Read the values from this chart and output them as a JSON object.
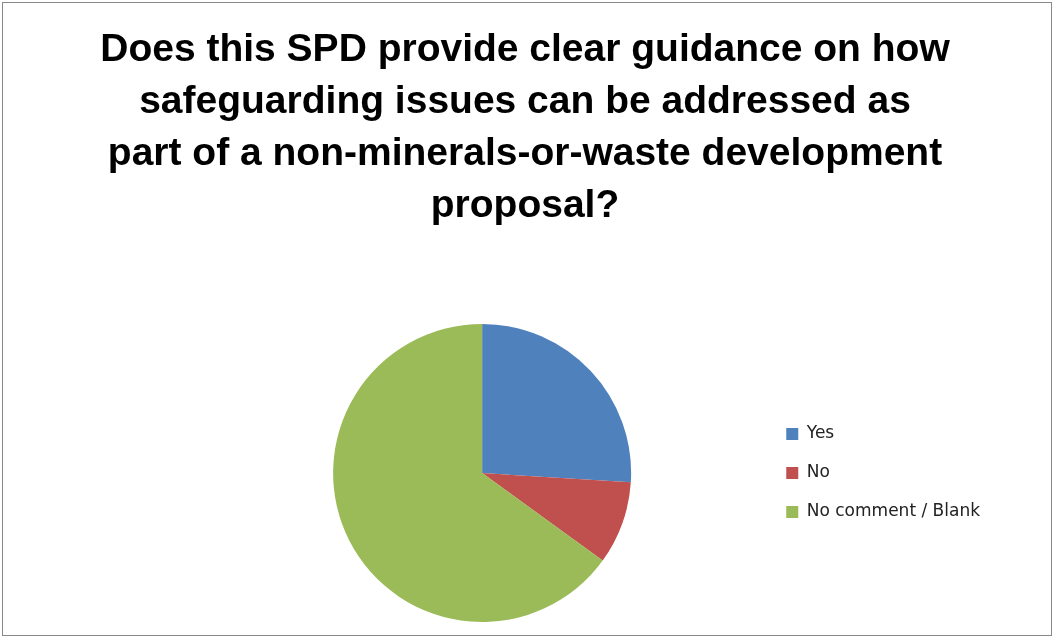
{
  "chart_data": {
    "type": "pie",
    "title": "Does this SPD provide clear guidance on how safeguarding issues can be addressed as part of a non-minerals-or-waste development proposal?",
    "categories": [
      "Yes",
      "No",
      "No comment / Blank"
    ],
    "values": [
      26,
      9,
      65
    ],
    "colors": [
      "#4f81bd",
      "#c0504d",
      "#9bbb59"
    ],
    "legend": "right"
  }
}
